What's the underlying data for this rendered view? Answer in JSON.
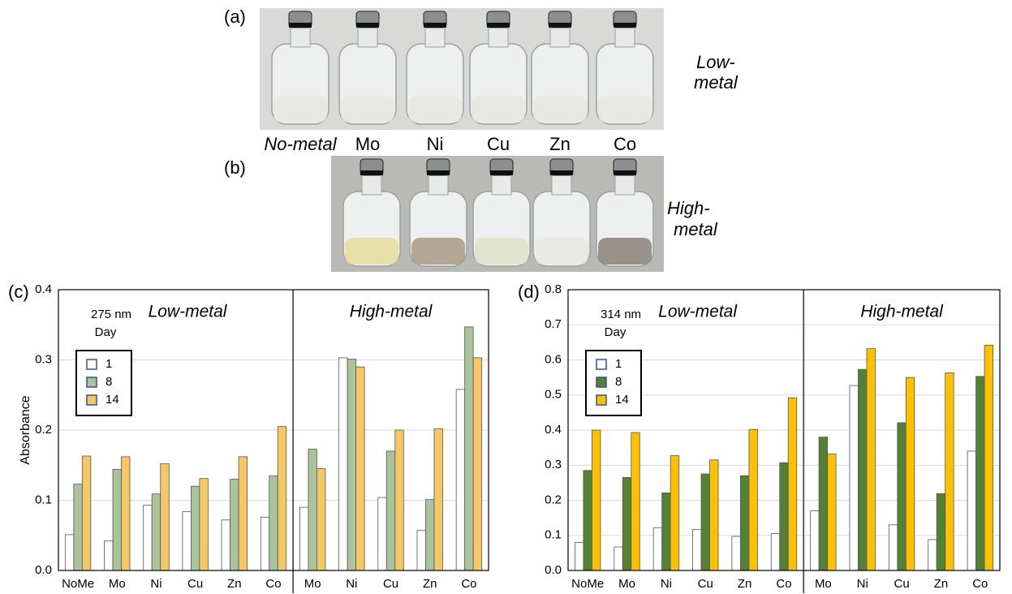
{
  "photos": {
    "a": {
      "panel": "(a)",
      "labels": [
        "No-metal",
        "Mo",
        "Ni",
        "Cu",
        "Zn",
        "Co"
      ],
      "side": [
        "Low-",
        "metal"
      ]
    },
    "b": {
      "panel": "(b)",
      "side": [
        "High-",
        "metal"
      ]
    }
  },
  "chart_data": [
    {
      "type": "bar",
      "panel": "(c)",
      "y_label": "Absorbance",
      "annotation": "275 nm",
      "legend_title": "Day",
      "legend": "upper left",
      "grid": true,
      "groups": [
        "Low-metal",
        "High-metal"
      ],
      "categories": [
        "NoMe",
        "Mo",
        "Ni",
        "Cu",
        "Zn",
        "Co",
        "Mo",
        "Ni",
        "Cu",
        "Zn",
        "Co"
      ],
      "ylim": [
        0,
        0.4
      ],
      "yticks": [
        {
          "value": 0,
          "label": "0.0"
        },
        0.1,
        0.2,
        0.3,
        0.4
      ],
      "series": [
        {
          "name": "1",
          "color": "#ffffff",
          "values": [
            0.051,
            0.042,
            0.093,
            0.084,
            0.072,
            0.076,
            0.09,
            0.303,
            0.104,
            0.057,
            0.258
          ]
        },
        {
          "name": "8",
          "color": "#a9c49b",
          "values": [
            0.123,
            0.144,
            0.109,
            0.12,
            0.13,
            0.135,
            0.173,
            0.301,
            0.17,
            0.101,
            0.347
          ]
        },
        {
          "name": "14",
          "color": "#f6c865",
          "values": [
            0.163,
            0.162,
            0.152,
            0.131,
            0.162,
            0.205,
            0.145,
            0.29,
            0.2,
            0.202,
            0.303
          ]
        }
      ]
    },
    {
      "type": "bar",
      "panel": "(d)",
      "annotation": "314 nm",
      "legend_title": "Day",
      "legend": "upper left",
      "grid": true,
      "groups": [
        "Low-metal",
        "High-metal"
      ],
      "categories": [
        "NoMe",
        "Mo",
        "Ni",
        "Cu",
        "Zn",
        "Co",
        "Mo",
        "Ni",
        "Cu",
        "Zn",
        "Co"
      ],
      "ylim": [
        0,
        0.8
      ],
      "yticks": [
        {
          "value": 0,
          "label": "0.0"
        },
        0.1,
        0.2,
        0.3,
        0.4,
        0.5,
        0.6,
        0.7,
        0.8
      ],
      "series": [
        {
          "name": "1",
          "color": "#ffffff",
          "values": [
            0.08,
            0.067,
            0.122,
            0.117,
            0.097,
            0.105,
            0.17,
            0.527,
            0.13,
            0.088,
            0.34
          ]
        },
        {
          "name": "8",
          "color": "#548235",
          "values": [
            0.285,
            0.265,
            0.221,
            0.275,
            0.27,
            0.307,
            0.38,
            0.573,
            0.421,
            0.219,
            0.553
          ]
        },
        {
          "name": "14",
          "color": "#ffc000",
          "values": [
            0.4,
            0.393,
            0.327,
            0.315,
            0.402,
            0.492,
            0.332,
            0.632,
            0.55,
            0.563,
            0.642
          ]
        }
      ]
    }
  ]
}
